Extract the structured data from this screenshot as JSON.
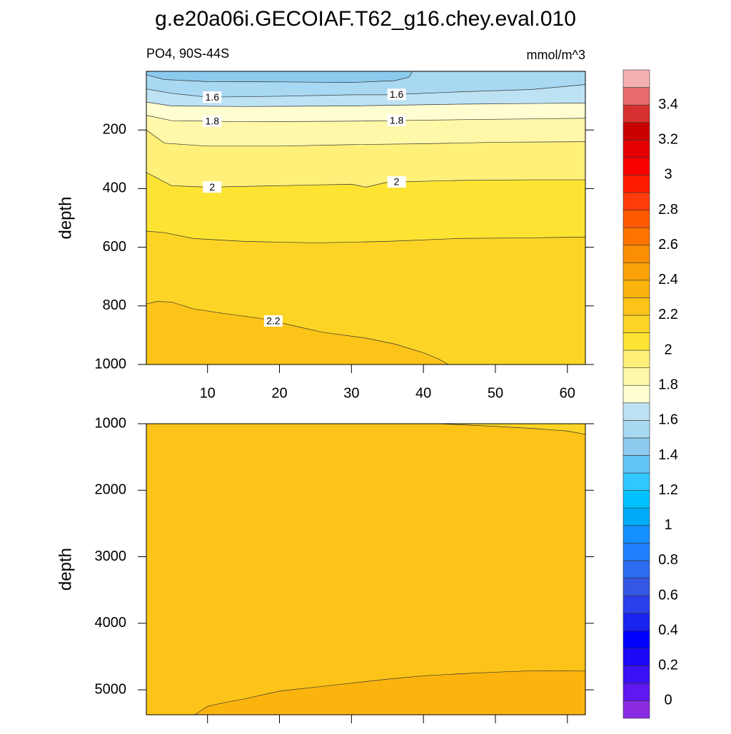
{
  "title": "g.e20a06i.GECOIAF.T62_g16.chey.eval.010",
  "chart_data": [
    {
      "type": "contour",
      "left_label": "PO4, 90S-44S",
      "right_label": "mmol/m^3",
      "ylabel": "depth",
      "xlim": [
        1.5,
        62.5
      ],
      "xticks": [
        10,
        20,
        30,
        40,
        50,
        60
      ],
      "xtick_labels": true,
      "ylim": [
        1000,
        0
      ],
      "yticks": [
        200,
        400,
        600,
        800,
        1000
      ],
      "contour_labels": true,
      "contours": [
        {
          "level": 1.5,
          "x": [
            1.5,
            4,
            10,
            20,
            30,
            36,
            38,
            38.5
          ],
          "y": [
            12,
            28,
            35,
            36,
            38,
            32,
            20,
            0
          ]
        },
        {
          "level": 1.6,
          "x": [
            1.5,
            5,
            10,
            20,
            30,
            35,
            45,
            55,
            62.5
          ],
          "y": [
            60,
            75,
            88,
            85,
            80,
            80,
            70,
            62,
            45
          ]
        },
        {
          "level": 1.7,
          "x": [
            1.5,
            5,
            15,
            30,
            45,
            62.5
          ],
          "y": [
            105,
            118,
            120,
            118,
            112,
            108
          ]
        },
        {
          "level": 1.8,
          "x": [
            1.5,
            5,
            15,
            30,
            45,
            62.5
          ],
          "y": [
            150,
            168,
            172,
            170,
            165,
            160
          ]
        },
        {
          "level": 1.9,
          "x": [
            1.5,
            4,
            10,
            20,
            30,
            40,
            50,
            62.5
          ],
          "y": [
            200,
            245,
            255,
            255,
            250,
            247,
            242,
            240
          ]
        },
        {
          "level": 2,
          "x": [
            1.5,
            5,
            10,
            20,
            30,
            32,
            35,
            45,
            55,
            62.5
          ],
          "y": [
            345,
            390,
            395,
            390,
            385,
            395,
            378,
            372,
            370,
            370
          ]
        },
        {
          "level": 2.1,
          "x": [
            1.5,
            4,
            8,
            15,
            25,
            35,
            45,
            55,
            62.5
          ],
          "y": [
            545,
            550,
            570,
            580,
            585,
            580,
            570,
            568,
            565
          ]
        },
        {
          "level": 2.2,
          "x": [
            1.5,
            3,
            5,
            8,
            12,
            18,
            22,
            26,
            32,
            36,
            40,
            42,
            43.5
          ],
          "y": [
            793,
            785,
            787,
            810,
            825,
            845,
            868,
            890,
            910,
            930,
            960,
            980,
            1000
          ]
        }
      ]
    },
    {
      "type": "contour",
      "ylabel": "depth",
      "xlim": [
        1.5,
        62.5
      ],
      "xticks": [
        10,
        20,
        30,
        40,
        50,
        60
      ],
      "xtick_labels": false,
      "ylim": [
        5375,
        1000
      ],
      "yticks": [
        1000,
        2000,
        3000,
        4000,
        5000
      ],
      "contour_labels": false,
      "contours": [
        {
          "level": 2.2,
          "x": [
            42,
            50,
            55,
            60,
            62.5
          ],
          "y": [
            1000,
            1040,
            1070,
            1110,
            1160
          ]
        },
        {
          "level": 2.3,
          "x": [
            8.2,
            9,
            10,
            12,
            15,
            20,
            25,
            30,
            35,
            40,
            45,
            50,
            55,
            60,
            62.5
          ],
          "y": [
            5375,
            5320,
            5250,
            5200,
            5140,
            5020,
            4960,
            4900,
            4840,
            4790,
            4760,
            4735,
            4715,
            4712,
            4720
          ]
        }
      ]
    }
  ],
  "colorbar": {
    "levels": [
      0,
      0.1,
      0.2,
      0.3,
      0.4,
      0.5,
      0.6,
      0.7,
      0.8,
      0.9,
      1,
      1.1,
      1.2,
      1.3,
      1.4,
      1.5,
      1.6,
      1.7,
      1.8,
      1.9,
      2,
      2.1,
      2.2,
      2.3,
      2.4,
      2.5,
      2.6,
      2.7,
      2.8,
      2.9,
      3,
      3.1,
      3.2,
      3.3,
      3.4,
      3.5
    ],
    "ticks": [
      0,
      0.2,
      0.4,
      0.6,
      0.8,
      1,
      1.2,
      1.4,
      1.6,
      1.8,
      2,
      2.2,
      2.4,
      2.6,
      2.8,
      3,
      3.2,
      3.4
    ],
    "colors": [
      "#8a2be2",
      "#6018f0",
      "#3c10f4",
      "#1c08f8",
      "#0000ff",
      "#1a24f0",
      "#2a40ea",
      "#3558e4",
      "#2c6cee",
      "#1e80ff",
      "#1490ff",
      "#00acf8",
      "#00c0ff",
      "#30c8ff",
      "#60c4f4",
      "#8ccaee",
      "#a8d8f2",
      "#bde2f4",
      "#fffed0",
      "#fff8a8",
      "#fff07a",
      "#fde433",
      "#fcd425",
      "#fcc418",
      "#fbb40e",
      "#fba208",
      "#fb8e04",
      "#ff7400",
      "#ff5a00",
      "#ff3c0a",
      "#ff1c00",
      "#f80000",
      "#e40000",
      "#c80000",
      "#d83030",
      "#e86c6c",
      "#f4b0b0"
    ]
  }
}
